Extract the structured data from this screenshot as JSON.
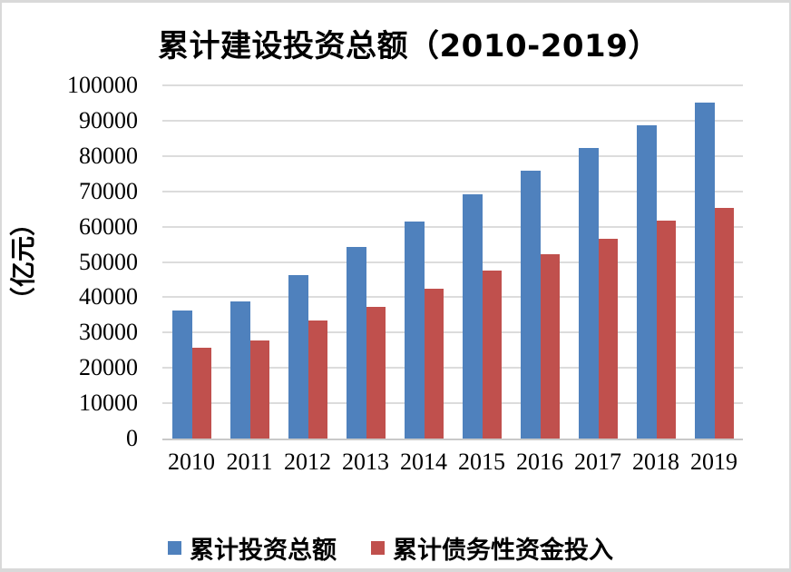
{
  "chart_data": {
    "type": "bar",
    "title": "累计建设投资总额（2010-2019）",
    "y_axis_title": "（亿元）",
    "xlabel": "",
    "ylabel": "（亿元）",
    "categories": [
      "2010",
      "2011",
      "2012",
      "2013",
      "2014",
      "2015",
      "2016",
      "2017",
      "2018",
      "2019"
    ],
    "series": [
      {
        "name": "累计投资总额",
        "color": "#4F81BD",
        "values": [
          36300,
          38900,
          46400,
          54200,
          61400,
          69200,
          75900,
          82200,
          88700,
          95100
        ]
      },
      {
        "name": "累计债务性资金投入",
        "color": "#C0504D",
        "values": [
          25800,
          27800,
          33500,
          37300,
          42500,
          47500,
          52200,
          56600,
          61700,
          65300
        ]
      }
    ],
    "ylim": [
      0,
      100000
    ],
    "ytick_step": 10000,
    "grid": true,
    "gridline_color": "#DCDCDC",
    "legend_position": "bottom"
  },
  "colors": {
    "background": "#FFFFFF",
    "border": "#D9D9D9",
    "axis_line": "#C9C9C9",
    "text": "#000000"
  }
}
